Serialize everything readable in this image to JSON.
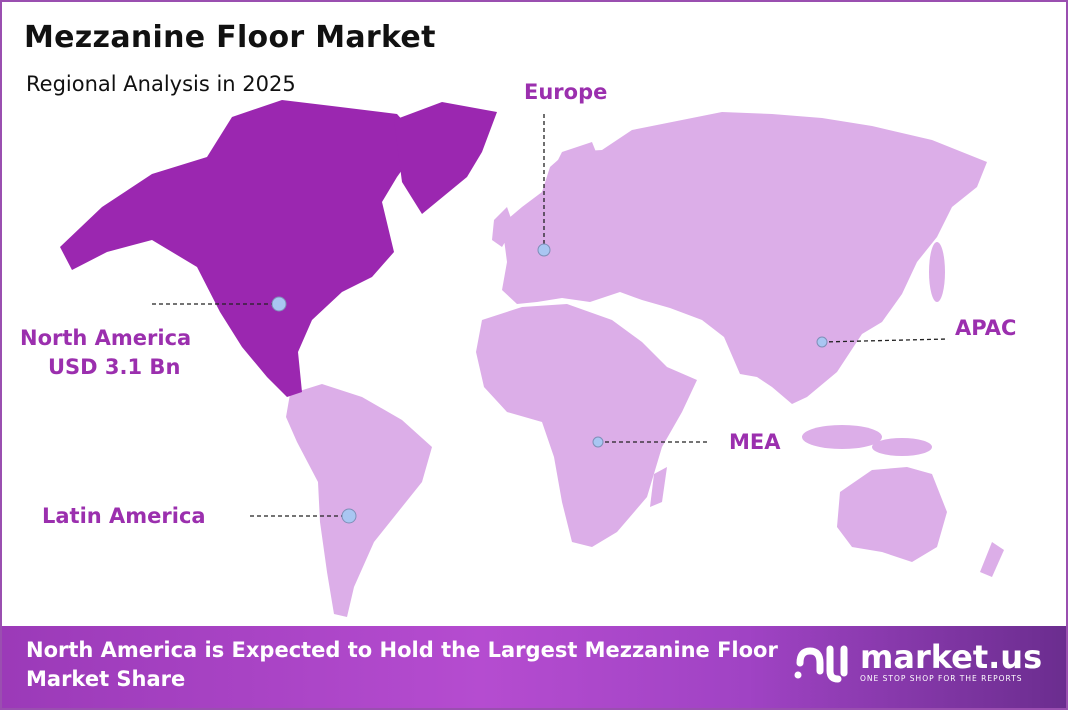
{
  "header": {
    "title": "Mezzanine Floor Market",
    "subtitle": "Regional Analysis in 2025"
  },
  "colors": {
    "highlight_region": "#9b27b0",
    "other_regions": "#dcaee8",
    "label": "#9b2fae",
    "marker": "#a9c6f2"
  },
  "regions": [
    {
      "id": "europe",
      "label": "Europe",
      "highlighted": false
    },
    {
      "id": "north-america",
      "label": "North America",
      "value": "USD 3.1 Bn",
      "highlighted": true
    },
    {
      "id": "apac",
      "label": "APAC",
      "highlighted": false
    },
    {
      "id": "mea",
      "label": "MEA",
      "highlighted": false
    },
    {
      "id": "latin-america",
      "label": "Latin America",
      "highlighted": false
    }
  ],
  "banner": {
    "text": "North America is Expected to Hold the Largest Mezzanine Floor Market Share"
  },
  "logo": {
    "name": "market.us",
    "tagline": "ONE STOP SHOP FOR THE REPORTS"
  }
}
